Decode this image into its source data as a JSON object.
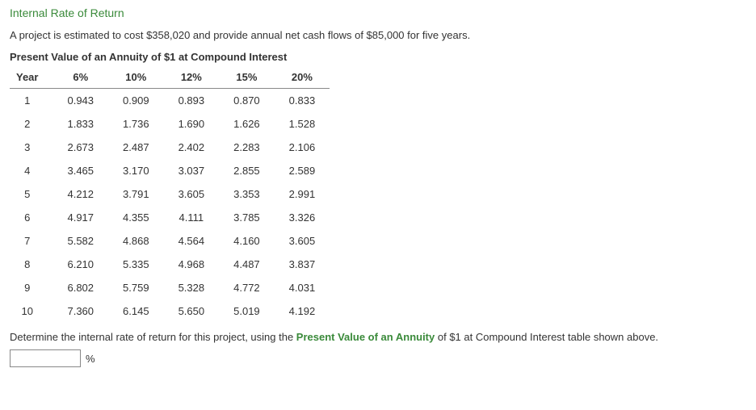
{
  "title": "Internal Rate of Return",
  "intro": "A project is estimated to cost $358,020 and provide annual net cash flows of $85,000 for five years.",
  "table": {
    "title": "Present Value of an Annuity of $1 at Compound Interest",
    "columns": [
      "Year",
      "6%",
      "10%",
      "12%",
      "15%",
      "20%"
    ],
    "rows": [
      [
        "1",
        "0.943",
        "0.909",
        "0.893",
        "0.870",
        "0.833"
      ],
      [
        "2",
        "1.833",
        "1.736",
        "1.690",
        "1.626",
        "1.528"
      ],
      [
        "3",
        "2.673",
        "2.487",
        "2.402",
        "2.283",
        "2.106"
      ],
      [
        "4",
        "3.465",
        "3.170",
        "3.037",
        "2.855",
        "2.589"
      ],
      [
        "5",
        "4.212",
        "3.791",
        "3.605",
        "3.353",
        "2.991"
      ],
      [
        "6",
        "4.917",
        "4.355",
        "4.111",
        "3.785",
        "3.326"
      ],
      [
        "7",
        "5.582",
        "4.868",
        "4.564",
        "4.160",
        "3.605"
      ],
      [
        "8",
        "6.210",
        "5.335",
        "4.968",
        "4.487",
        "3.837"
      ],
      [
        "9",
        "6.802",
        "5.759",
        "5.328",
        "4.772",
        "4.031"
      ],
      [
        "10",
        "7.360",
        "6.145",
        "5.650",
        "5.019",
        "4.192"
      ]
    ]
  },
  "prompt": {
    "pre": "Determine the internal rate of return for this project, using the ",
    "ref": "Present Value of an Annuity",
    "post": " of $1 at Compound Interest table shown above."
  },
  "answer": {
    "value": "",
    "unit": "%"
  },
  "colors": {
    "accent": "#3a8a3a",
    "text": "#333333",
    "border": "#888888",
    "background": "#ffffff"
  }
}
